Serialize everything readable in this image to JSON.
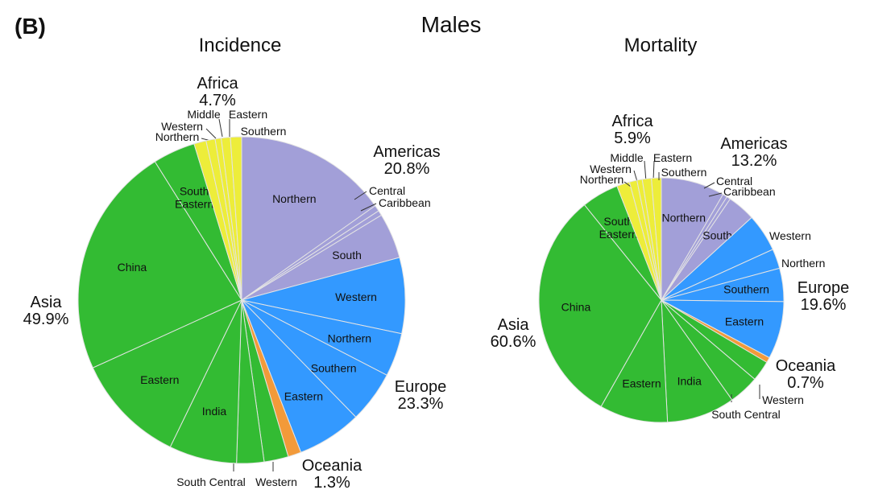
{
  "panel_label": "(B)",
  "title": "Males",
  "chart_data": [
    {
      "type": "pie",
      "title": "Incidence",
      "regions": [
        {
          "name": "Americas",
          "percent": "20.8%",
          "color": "#a29fd8",
          "slices": [
            {
              "label": "Northern",
              "value": 15.2
            },
            {
              "label": "Central",
              "value": 0.6
            },
            {
              "label": "Caribbean",
              "value": 0.5
            },
            {
              "label": "South",
              "value": 4.5
            }
          ]
        },
        {
          "name": "Europe",
          "percent": "23.3%",
          "color": "#3399ff",
          "slices": [
            {
              "label": "Western",
              "value": 7.5
            },
            {
              "label": "Northern",
              "value": 4.3
            },
            {
              "label": "Southern",
              "value": 5.1
            },
            {
              "label": "Eastern",
              "value": 6.4
            }
          ]
        },
        {
          "name": "Oceania",
          "percent": "1.3%",
          "color": "#f29a3a",
          "slices": [
            {
              "label": "",
              "value": 1.3
            }
          ]
        },
        {
          "name": "Asia",
          "percent": "49.9%",
          "color": "#33bb33",
          "slices": [
            {
              "label": "Western",
              "value": 2.4
            },
            {
              "label": "South Central",
              "value": 2.7
            },
            {
              "label": "India",
              "value": 6.7
            },
            {
              "label": "Eastern",
              "value": 11.0
            },
            {
              "label": "China",
              "value": 22.9
            },
            {
              "label": "South Eastern",
              "value": 4.2
            }
          ]
        },
        {
          "name": "Africa",
          "percent": "4.7%",
          "color": "#eded3a",
          "slices": [
            {
              "label": "Northern",
              "value": 1.2
            },
            {
              "label": "Western",
              "value": 0.9
            },
            {
              "label": "Middle",
              "value": 0.6
            },
            {
              "label": "Eastern",
              "value": 0.9
            },
            {
              "label": "Southern",
              "value": 1.1
            }
          ]
        }
      ]
    },
    {
      "type": "pie",
      "title": "Mortality",
      "regions": [
        {
          "name": "Americas",
          "percent": "13.2%",
          "color": "#a29fd8",
          "slices": [
            {
              "label": "Northern",
              "value": 8.4
            },
            {
              "label": "Central",
              "value": 0.6
            },
            {
              "label": "Caribbean",
              "value": 0.5
            },
            {
              "label": "South",
              "value": 3.7
            }
          ]
        },
        {
          "name": "Europe",
          "percent": "19.6%",
          "color": "#3399ff",
          "slices": [
            {
              "label": "Western",
              "value": 5.0
            },
            {
              "label": "Northern",
              "value": 2.6
            },
            {
              "label": "Southern",
              "value": 4.4
            },
            {
              "label": "Eastern",
              "value": 7.6
            }
          ]
        },
        {
          "name": "Oceania",
          "percent": "0.7%",
          "color": "#f29a3a",
          "slices": [
            {
              "label": "",
              "value": 0.7
            }
          ]
        },
        {
          "name": "Asia",
          "percent": "60.6%",
          "color": "#33bb33",
          "slices": [
            {
              "label": "Western",
              "value": 2.7
            },
            {
              "label": "South Central",
              "value": 4.0
            },
            {
              "label": "India",
              "value": 9.0
            },
            {
              "label": "Eastern",
              "value": 9.0
            },
            {
              "label": "China",
              "value": 31.0
            },
            {
              "label": "South Eastern",
              "value": 4.9
            }
          ]
        },
        {
          "name": "Africa",
          "percent": "5.9%",
          "color": "#eded3a",
          "slices": [
            {
              "label": "Northern",
              "value": 1.7
            },
            {
              "label": "Western",
              "value": 1.0
            },
            {
              "label": "Middle",
              "value": 0.7
            },
            {
              "label": "Eastern",
              "value": 1.2
            },
            {
              "label": "Southern",
              "value": 1.3
            }
          ]
        }
      ]
    }
  ]
}
